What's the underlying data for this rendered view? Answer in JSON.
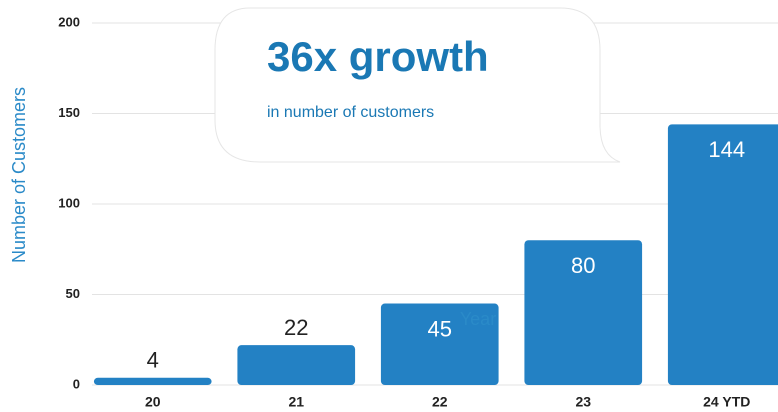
{
  "chart_data": {
    "type": "bar",
    "annotation_title": "36x growth",
    "annotation_text": "in number of customers",
    "xlabel": "Year",
    "ylabel": "Number of Customers",
    "categories": [
      "20",
      "21",
      "22",
      "23",
      "24 YTD"
    ],
    "values": [
      4,
      22,
      45,
      80,
      144
    ],
    "color": "#2381c4",
    "ylim": [
      0,
      200
    ],
    "yticks": [
      0,
      50,
      100,
      150,
      200
    ],
    "grid": true
  }
}
